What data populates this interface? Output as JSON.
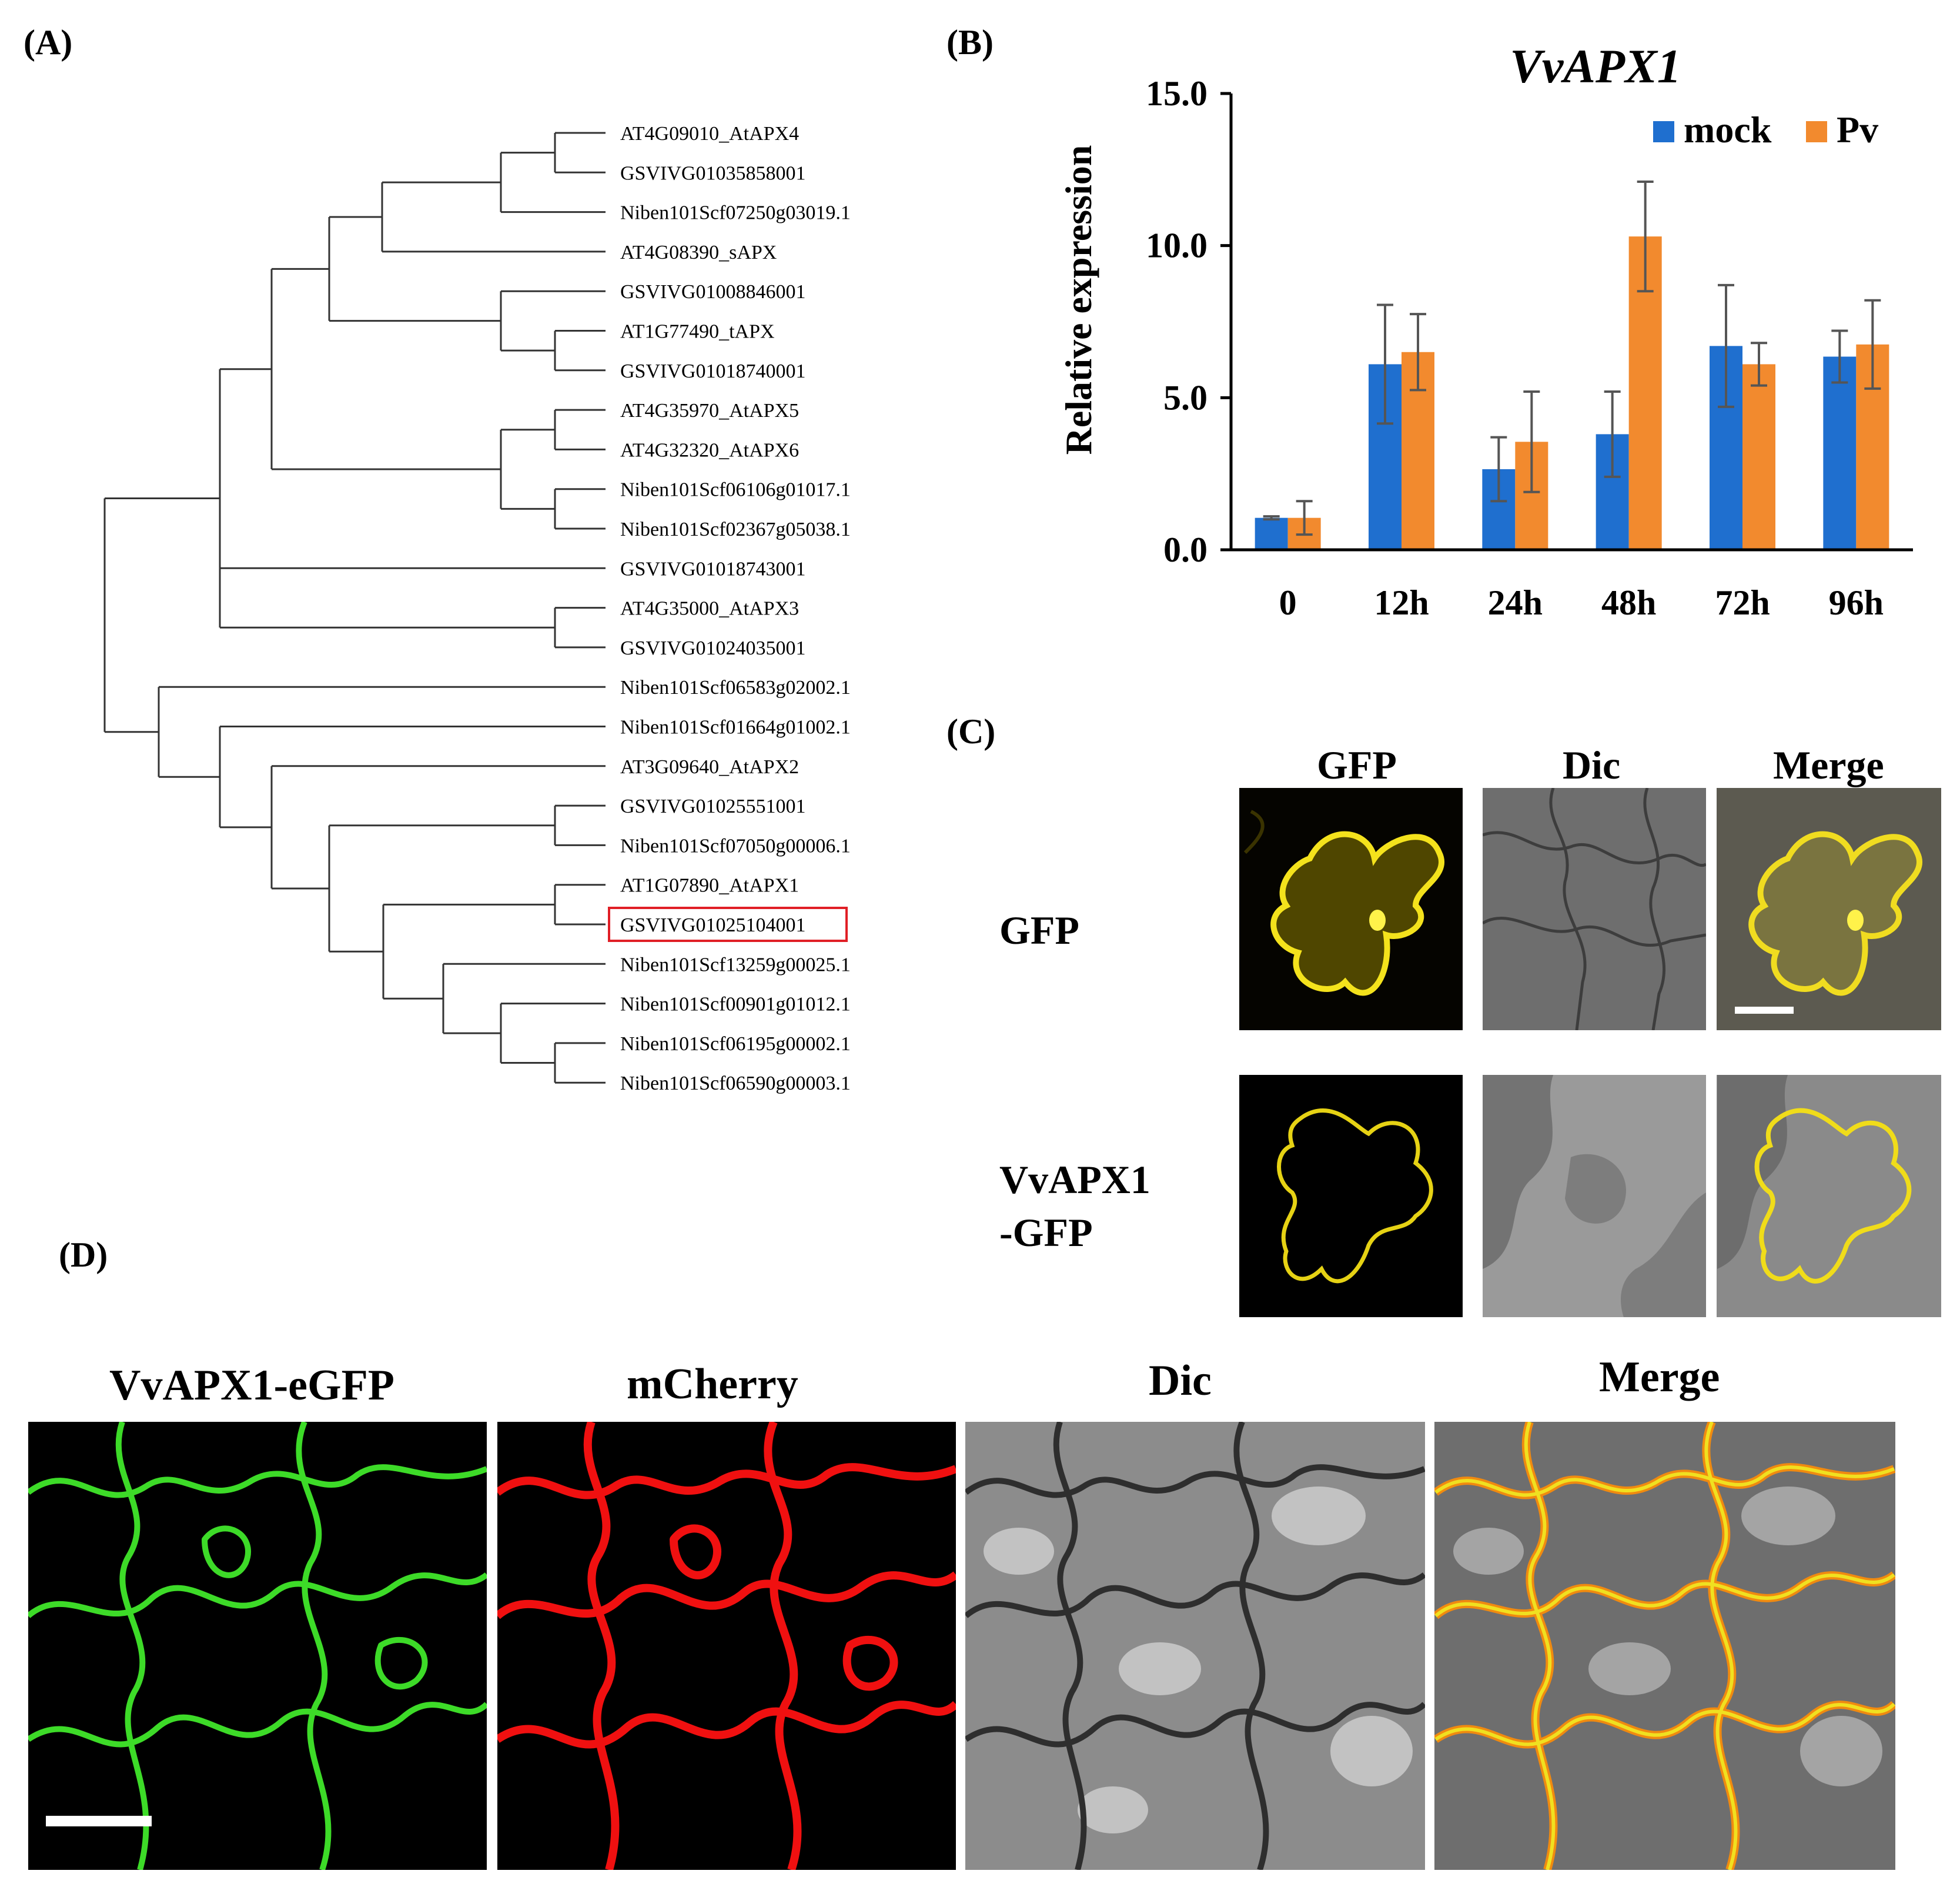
{
  "panels": {
    "a": "(A)",
    "b": "(B)",
    "c": "(C)",
    "d": "(D)"
  },
  "highlight_color": "#e01f26",
  "tree": {
    "leaves": [
      "AT4G09010_AtAPX4",
      "GSVIVG01035858001",
      "Niben101Scf07250g03019.1",
      "AT4G08390_sAPX",
      "GSVIVG01008846001",
      "AT1G77490_tAPX",
      "GSVIVG01018740001",
      "AT4G35970_AtAPX5",
      "AT4G32320_AtAPX6",
      "Niben101Scf06106g01017.1",
      "Niben101Scf02367g05038.1",
      "GSVIVG01018743001",
      "AT4G35000_AtAPX3",
      "GSVIVG01024035001",
      "Niben101Scf06583g02002.1",
      "Niben101Scf01664g01002.1",
      "AT3G09640_AtAPX2",
      "GSVIVG01025551001",
      "Niben101Scf07050g00006.1",
      "AT1G07890_AtAPX1",
      "GSVIVG01025104001",
      "Niben101Scf13259g00025.1",
      "Niben101Scf00901g01012.1",
      "Niben101Scf06195g00002.1",
      "Niben101Scf06590g00003.1"
    ],
    "highlighted_leaf": "GSVIVG01025104001"
  },
  "chart_data": {
    "type": "bar",
    "title": "VvAPX1",
    "ylabel": "Relative expression",
    "xlabel": "",
    "categories": [
      "0",
      "12h",
      "24h",
      "48h",
      "72h",
      "96h"
    ],
    "ylim": [
      0,
      15
    ],
    "yticks": [
      "0.0",
      "5.0",
      "10.0",
      "15.0"
    ],
    "legend_position": "top-right",
    "series": [
      {
        "name": "mock",
        "color": "#1f6fcf",
        "values": [
          1.05,
          6.1,
          2.65,
          3.8,
          6.7,
          6.35
        ],
        "errors": [
          0.05,
          1.95,
          1.05,
          1.4,
          2.0,
          0.85
        ]
      },
      {
        "name": "Pv",
        "color": "#f28a2e",
        "values": [
          1.05,
          6.5,
          3.55,
          10.3,
          6.1,
          6.75
        ],
        "errors": [
          0.55,
          1.25,
          1.65,
          1.8,
          0.7,
          1.45
        ]
      }
    ]
  },
  "panel_c": {
    "columns": [
      "GFP",
      "Dic",
      "Merge"
    ],
    "rows": [
      {
        "label": "GFP"
      },
      {
        "label_line1": "VvAPX1",
        "label_line2": "-GFP"
      }
    ]
  },
  "panel_d": {
    "columns": [
      "VvAPX1-eGFP",
      "mCherry",
      "Dic",
      "Merge"
    ]
  }
}
